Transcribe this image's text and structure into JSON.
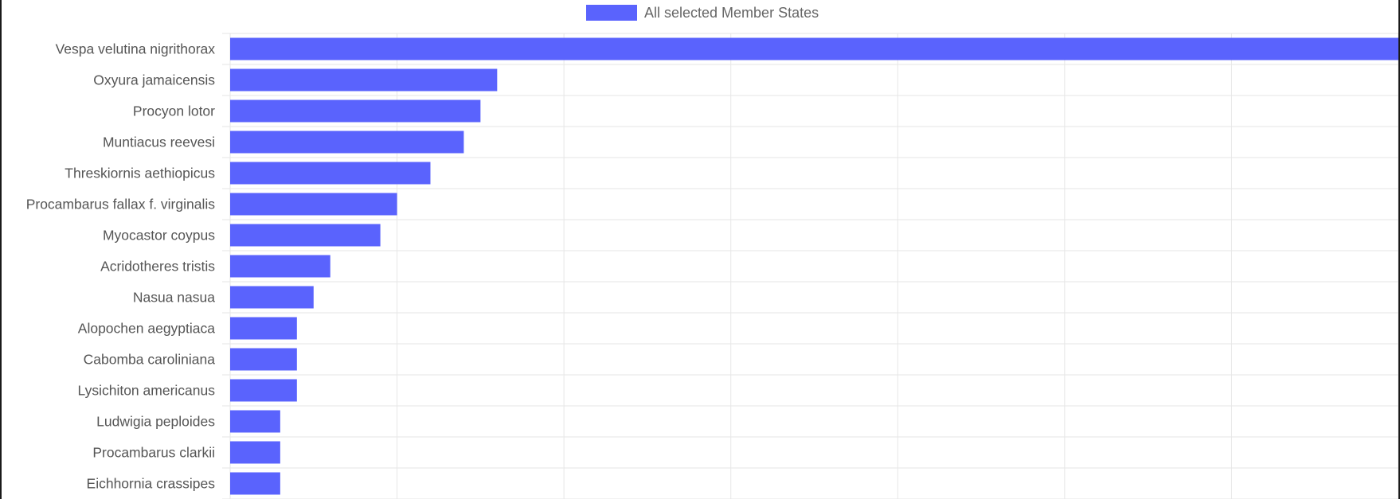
{
  "legend": {
    "label": "All selected Member States",
    "color": "#5a63fd"
  },
  "chart_data": {
    "type": "bar",
    "orientation": "horizontal",
    "title": "",
    "xlabel": "",
    "ylabel": "",
    "categories": [
      "Vespa velutina nigrithorax",
      "Oxyura jamaicensis",
      "Procyon lotor",
      "Muntiacus reevesi",
      "Threskiornis aethiopicus",
      "Procambarus fallax f. virginalis",
      "Myocastor coypus",
      "Acridotheres tristis",
      "Nasua nasua",
      "Alopochen aegyptiaca",
      "Cabomba caroliniana",
      "Lysichiton americanus",
      "Ludwigia peploides",
      "Procambarus clarkii",
      "Eichhornia crassipes"
    ],
    "series": [
      {
        "name": "All selected Member States",
        "color": "#5a63fd",
        "values": [
          70,
          16,
          15,
          14,
          12,
          10,
          9,
          6,
          5,
          4,
          4,
          4,
          3,
          3,
          3
        ]
      }
    ],
    "xlim": [
      0,
      70
    ],
    "grid": true,
    "legend_position": "top-center"
  }
}
